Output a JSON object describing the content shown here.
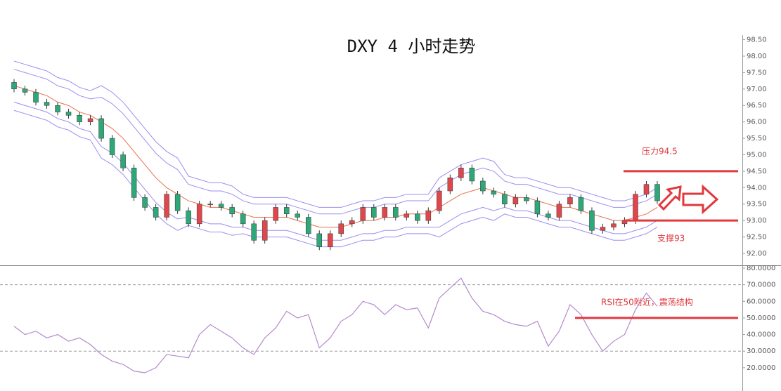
{
  "chart_data": [
    {
      "type": "candlestick",
      "title": "DXY 4 小时走势",
      "categories": [
        null,
        null,
        null,
        null,
        null,
        null,
        null,
        null,
        null,
        null,
        null,
        null,
        null,
        null,
        null,
        null,
        null,
        null,
        null,
        null,
        null,
        null,
        null,
        null,
        null,
        null,
        null,
        null,
        null,
        null,
        null,
        null,
        null,
        null,
        null,
        null,
        null,
        null,
        null,
        null,
        null,
        null,
        null,
        null,
        null,
        null,
        null,
        null,
        null,
        null,
        null,
        null,
        null,
        null,
        null,
        null,
        null,
        null,
        null,
        null
      ],
      "open": [
        97.2,
        97.0,
        96.9,
        96.6,
        96.5,
        96.3,
        96.2,
        96.0,
        96.1,
        95.5,
        95.0,
        94.6,
        93.7,
        93.4,
        93.1,
        93.8,
        93.3,
        92.9,
        93.5,
        93.5,
        93.4,
        93.2,
        92.9,
        92.4,
        93.0,
        93.4,
        93.2,
        93.1,
        92.6,
        92.2,
        92.6,
        92.9,
        93.0,
        93.4,
        93.1,
        93.4,
        93.1,
        93.2,
        93.0,
        93.3,
        93.9,
        94.3,
        94.6,
        94.2,
        93.9,
        93.8,
        93.5,
        93.7,
        93.6,
        93.2,
        93.1,
        93.5,
        93.7,
        93.3,
        92.7,
        92.8,
        92.9,
        93.0,
        93.8,
        94.1
      ],
      "high": [
        97.3,
        97.1,
        97.0,
        96.7,
        96.6,
        96.4,
        96.3,
        96.2,
        96.2,
        95.6,
        95.1,
        94.7,
        93.8,
        93.5,
        93.9,
        93.9,
        93.4,
        93.6,
        93.6,
        93.6,
        93.5,
        93.3,
        93.0,
        93.1,
        93.5,
        93.5,
        93.3,
        93.2,
        92.7,
        92.7,
        93.0,
        93.1,
        93.5,
        93.5,
        93.5,
        93.5,
        93.3,
        93.3,
        93.4,
        94.0,
        94.4,
        94.7,
        94.7,
        94.3,
        94.0,
        93.9,
        93.8,
        93.8,
        93.7,
        93.3,
        93.6,
        93.8,
        93.8,
        93.4,
        92.9,
        93.0,
        93.1,
        93.9,
        94.2,
        94.2
      ],
      "low": [
        96.9,
        96.8,
        96.5,
        96.4,
        96.2,
        96.1,
        95.9,
        95.9,
        95.4,
        94.9,
        94.5,
        93.6,
        93.3,
        93.0,
        93.0,
        93.2,
        92.8,
        92.8,
        93.4,
        93.3,
        93.1,
        92.8,
        92.3,
        92.3,
        92.9,
        93.1,
        93.0,
        92.5,
        92.1,
        92.1,
        92.5,
        92.8,
        92.9,
        93.0,
        93.0,
        93.0,
        93.0,
        92.9,
        92.9,
        93.2,
        93.8,
        94.2,
        94.1,
        93.8,
        93.7,
        93.4,
        93.4,
        93.5,
        93.1,
        93.0,
        93.0,
        93.4,
        93.2,
        92.6,
        92.6,
        92.7,
        92.8,
        92.9,
        93.7,
        93.5
      ],
      "close": [
        97.0,
        96.9,
        96.6,
        96.5,
        96.3,
        96.2,
        96.0,
        96.1,
        95.5,
        95.0,
        94.6,
        93.7,
        93.4,
        93.1,
        93.8,
        93.3,
        92.9,
        93.5,
        93.5,
        93.4,
        93.2,
        92.9,
        92.4,
        93.0,
        93.4,
        93.2,
        93.1,
        92.6,
        92.2,
        92.6,
        92.9,
        93.0,
        93.4,
        93.1,
        93.4,
        93.1,
        93.2,
        93.0,
        93.3,
        93.9,
        94.3,
        94.6,
        94.2,
        93.9,
        93.8,
        93.5,
        93.7,
        93.6,
        93.2,
        93.1,
        93.5,
        93.7,
        93.3,
        92.7,
        92.8,
        92.9,
        93.0,
        93.8,
        94.1,
        93.6
      ],
      "up_color": "#e0474c",
      "down_color": "#2ea878",
      "lines": [
        {
          "color": "#9a8ef0",
          "values": [
            97.85,
            97.75,
            97.65,
            97.55,
            97.35,
            97.25,
            97.05,
            96.95,
            97.1,
            96.9,
            96.6,
            96.2,
            95.8,
            95.4,
            95.1,
            94.9,
            94.35,
            94.25,
            94.15,
            94.15,
            94.05,
            93.8,
            93.7,
            93.7,
            93.7,
            93.7,
            93.6,
            93.5,
            93.4,
            93.4,
            93.4,
            93.5,
            93.6,
            93.6,
            93.7,
            93.7,
            93.8,
            93.8,
            93.8,
            94.3,
            94.5,
            94.7,
            94.8,
            94.9,
            94.8,
            94.4,
            94.3,
            94.3,
            94.2,
            94.1,
            94.0,
            94.0,
            93.9,
            93.8,
            93.7,
            93.6,
            93.6,
            93.7,
            93.8,
            94.0
          ]
        },
        {
          "color": "#9a8ef0",
          "values": [
            97.6,
            97.5,
            97.4,
            97.3,
            97.1,
            97.0,
            96.8,
            96.7,
            96.75,
            96.55,
            96.25,
            95.85,
            95.45,
            95.05,
            94.75,
            94.55,
            94.1,
            94.0,
            93.9,
            93.9,
            93.8,
            93.6,
            93.5,
            93.5,
            93.5,
            93.5,
            93.4,
            93.3,
            93.2,
            93.2,
            93.2,
            93.3,
            93.4,
            93.4,
            93.5,
            93.5,
            93.6,
            93.6,
            93.6,
            94.0,
            94.2,
            94.4,
            94.5,
            94.6,
            94.5,
            94.2,
            94.1,
            94.1,
            94.0,
            93.9,
            93.8,
            93.8,
            93.7,
            93.6,
            93.5,
            93.4,
            93.4,
            93.5,
            93.6,
            93.8
          ]
        },
        {
          "color": "#e8704a",
          "values": [
            97.1,
            97.0,
            96.9,
            96.8,
            96.6,
            96.5,
            96.3,
            96.2,
            96.0,
            95.8,
            95.5,
            95.1,
            94.7,
            94.3,
            94.0,
            93.8,
            93.6,
            93.5,
            93.4,
            93.4,
            93.3,
            93.2,
            93.1,
            93.1,
            93.1,
            93.1,
            93.0,
            92.9,
            92.8,
            92.8,
            92.8,
            92.9,
            93.0,
            93.0,
            93.1,
            93.1,
            93.2,
            93.2,
            93.2,
            93.4,
            93.6,
            93.8,
            93.9,
            94.0,
            93.9,
            93.8,
            93.7,
            93.7,
            93.6,
            93.5,
            93.4,
            93.4,
            93.3,
            93.2,
            93.1,
            93.0,
            93.0,
            93.1,
            93.2,
            93.4
          ]
        },
        {
          "color": "#9a8ef0",
          "values": [
            96.6,
            96.5,
            96.4,
            96.3,
            96.1,
            96.0,
            95.8,
            95.7,
            95.25,
            95.05,
            94.75,
            94.35,
            93.95,
            93.55,
            93.25,
            93.05,
            93.1,
            93.0,
            92.9,
            92.9,
            92.8,
            92.8,
            92.7,
            92.7,
            92.7,
            92.7,
            92.6,
            92.5,
            92.4,
            92.4,
            92.4,
            92.5,
            92.6,
            92.6,
            92.7,
            92.7,
            92.8,
            92.8,
            92.8,
            92.8,
            93.0,
            93.2,
            93.3,
            93.4,
            93.3,
            93.4,
            93.3,
            93.3,
            93.2,
            93.1,
            93.0,
            93.0,
            92.9,
            92.8,
            92.7,
            92.6,
            92.6,
            92.7,
            92.8,
            93.0
          ]
        },
        {
          "color": "#9a8ef0",
          "values": [
            96.35,
            96.25,
            96.15,
            96.05,
            95.85,
            95.75,
            95.55,
            95.45,
            94.9,
            94.7,
            94.4,
            94.0,
            93.6,
            93.2,
            92.9,
            92.7,
            92.85,
            92.75,
            92.65,
            92.65,
            92.55,
            92.6,
            92.5,
            92.5,
            92.5,
            92.5,
            92.4,
            92.3,
            92.2,
            92.2,
            92.2,
            92.3,
            92.4,
            92.4,
            92.5,
            92.5,
            92.6,
            92.6,
            92.6,
            92.5,
            92.7,
            92.9,
            93.0,
            93.1,
            93.0,
            93.2,
            93.1,
            93.1,
            93.0,
            92.9,
            92.8,
            92.8,
            92.7,
            92.6,
            92.5,
            92.4,
            92.4,
            92.5,
            92.6,
            92.8
          ]
        }
      ],
      "ylim": [
        91.65,
        98.55
      ],
      "yticks": [
        {
          "value": 92,
          "label": "92.00"
        },
        {
          "value": 92.5,
          "label": "92.50"
        },
        {
          "value": 93,
          "label": "93.00"
        },
        {
          "value": 93.5,
          "label": "93.50"
        },
        {
          "value": 94,
          "label": "94.00"
        },
        {
          "value": 94.5,
          "label": "94.50"
        },
        {
          "value": 95,
          "label": "95.00"
        },
        {
          "value": 95.5,
          "label": "95.50"
        },
        {
          "value": 96,
          "label": "96.00"
        },
        {
          "value": 96.5,
          "label": "96.50"
        },
        {
          "value": 97,
          "label": "97.00"
        },
        {
          "value": 97.5,
          "label": "97.50"
        },
        {
          "value": 98,
          "label": "98.00"
        },
        {
          "value": 98.5,
          "label": "98.50"
        }
      ],
      "annotations": [
        {
          "text": "压力94.5",
          "value": 94.5,
          "color": "#e0393e"
        },
        {
          "text": "支撑93",
          "value": 93,
          "color": "#e0393e"
        }
      ]
    },
    {
      "type": "line",
      "categories": [
        null,
        null,
        null,
        null,
        null,
        null,
        null,
        null,
        null,
        null,
        null,
        null,
        null,
        null,
        null,
        null,
        null,
        null,
        null,
        null,
        null,
        null,
        null,
        null,
        null,
        null,
        null,
        null,
        null,
        null,
        null,
        null,
        null,
        null,
        null,
        null,
        null,
        null,
        null,
        null,
        null,
        null,
        null,
        null,
        null,
        null,
        null,
        null,
        null,
        null,
        null,
        null,
        null,
        null,
        null,
        null,
        null,
        null,
        null,
        null
      ],
      "values": [
        45,
        40,
        42,
        38,
        40,
        36,
        38,
        34,
        28,
        24,
        22,
        18,
        17,
        20,
        28,
        27,
        26,
        40,
        46,
        42,
        38,
        32,
        28,
        38,
        44,
        54,
        50,
        52,
        32,
        38,
        48,
        52,
        60,
        58,
        52,
        58,
        55,
        56,
        44,
        62,
        68,
        74,
        62,
        54,
        52,
        48,
        46,
        45,
        48,
        33,
        42,
        58,
        52,
        40,
        30,
        36,
        40,
        55,
        65,
        57
      ],
      "color": "#b48ad0",
      "ylim": [
        6,
        80.5
      ],
      "yticks": [
        {
          "value": 20,
          "label": "20.0000"
        },
        {
          "value": 30,
          "label": "30.0000"
        },
        {
          "value": 40,
          "label": "40.0000"
        },
        {
          "value": 50,
          "label": "50.0000"
        },
        {
          "value": 60,
          "label": "60.0000"
        },
        {
          "value": 70,
          "label": "70.0000"
        },
        {
          "value": 80,
          "label": "80.0000"
        }
      ],
      "reference_lines": [
        70,
        30
      ],
      "annotations": [
        {
          "text": "RSI在50附近，震荡结构",
          "value": 50,
          "color": "#e0393e"
        }
      ]
    }
  ]
}
